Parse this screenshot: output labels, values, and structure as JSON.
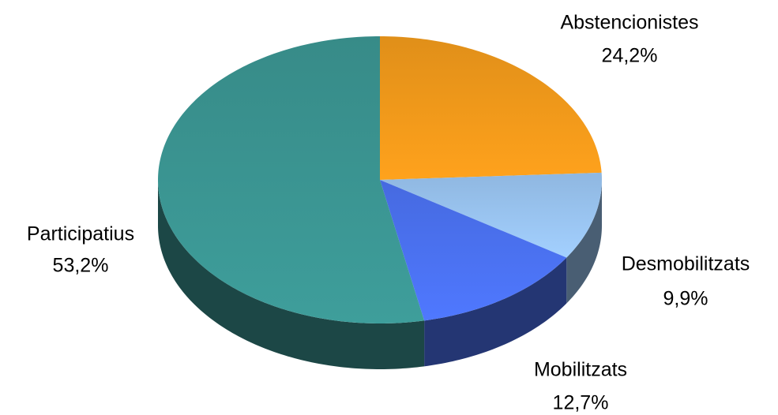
{
  "chart_data": {
    "type": "pie",
    "categories": [
      "Abstencionistes",
      "Desmobilitzats",
      "Mobilitzats",
      "Participatius"
    ],
    "values": [
      24.2,
      9.9,
      12.7,
      53.2
    ],
    "value_labels": [
      "24,2%",
      "9,9%",
      "12,7%",
      "53,2%"
    ],
    "colors": [
      "#ffa21c",
      "#a3d0ff",
      "#4f78ff",
      "#3e9e9b"
    ]
  }
}
